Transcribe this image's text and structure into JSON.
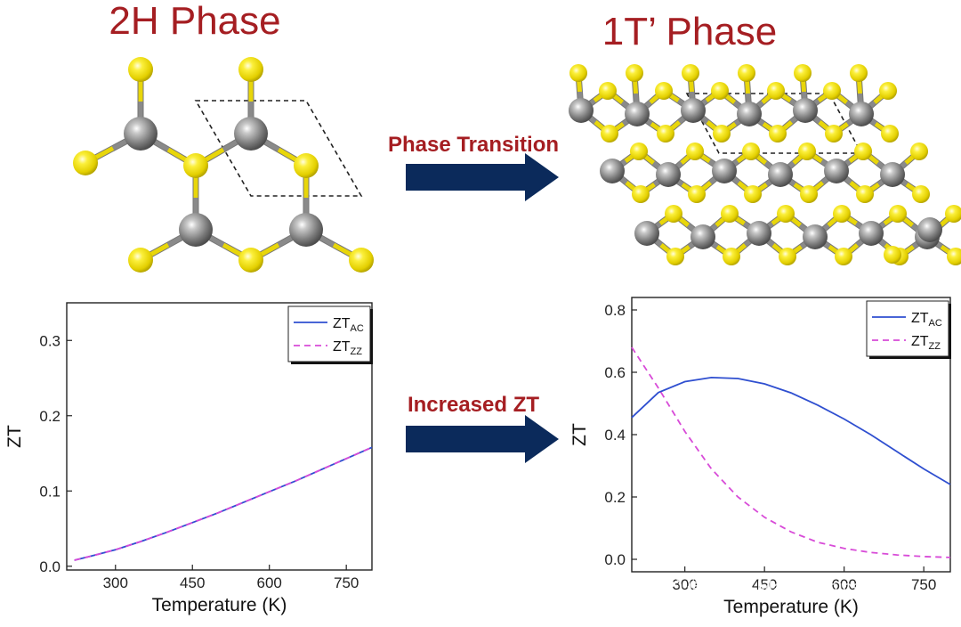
{
  "titles": {
    "left": "2H Phase",
    "right": "1T’ Phase"
  },
  "arrows": {
    "top": "Phase Transition",
    "bottom": "Increased ZT"
  },
  "watermark": "微信号: Materiomics",
  "colors": {
    "title_red": "#a51e22",
    "arrow_navy": "#0b2a5b",
    "metal_atom": "#808080",
    "chalcogen_atom": "#f2e21b",
    "series_ac": "#2f4fd0",
    "series_zz": "#d84bd8"
  },
  "chart_data": [
    {
      "type": "line",
      "xlabel": "Temperature (K)",
      "ylabel": "ZT",
      "xlim": [
        205,
        800
      ],
      "ylim": [
        -0.005,
        0.35
      ],
      "xticks": [
        300,
        450,
        600,
        750
      ],
      "yticks": [
        0.0,
        0.1,
        0.2,
        0.3
      ],
      "ytick_labels": [
        "0.0",
        "0.1",
        "0.2",
        "0.3"
      ],
      "legend": "top-right",
      "series": [
        {
          "name": "ZT",
          "sub": "AC",
          "style": "solid",
          "x": [
            220,
            250,
            300,
            350,
            400,
            450,
            500,
            550,
            600,
            650,
            700,
            750,
            800
          ],
          "y": [
            0.008,
            0.013,
            0.022,
            0.033,
            0.045,
            0.058,
            0.071,
            0.085,
            0.099,
            0.113,
            0.128,
            0.143,
            0.158
          ]
        },
        {
          "name": "ZT",
          "sub": "ZZ",
          "style": "dashed",
          "x": [
            220,
            250,
            300,
            350,
            400,
            450,
            500,
            550,
            600,
            650,
            700,
            750,
            800
          ],
          "y": [
            0.008,
            0.013,
            0.022,
            0.033,
            0.045,
            0.058,
            0.071,
            0.085,
            0.099,
            0.113,
            0.128,
            0.143,
            0.158
          ]
        }
      ]
    },
    {
      "type": "line",
      "xlabel": "Temperature (K)",
      "ylabel": "ZT",
      "xlim": [
        200,
        800
      ],
      "ylim": [
        -0.04,
        0.84
      ],
      "xticks": [
        300,
        450,
        600,
        750
      ],
      "yticks": [
        0.0,
        0.2,
        0.4,
        0.6,
        0.8
      ],
      "ytick_labels": [
        "0.0",
        "0.2",
        "0.4",
        "0.6",
        "0.8"
      ],
      "legend": "top-right",
      "series": [
        {
          "name": "ZT",
          "sub": "AC",
          "style": "solid",
          "x": [
            200,
            250,
            300,
            350,
            400,
            450,
            500,
            550,
            600,
            650,
            700,
            750,
            800
          ],
          "y": [
            0.455,
            0.535,
            0.57,
            0.583,
            0.58,
            0.563,
            0.534,
            0.495,
            0.45,
            0.4,
            0.345,
            0.29,
            0.24
          ]
        },
        {
          "name": "ZT",
          "sub": "ZZ",
          "style": "dashed",
          "x": [
            200,
            250,
            300,
            350,
            400,
            450,
            500,
            550,
            600,
            650,
            700,
            750,
            800
          ],
          "y": [
            0.68,
            0.55,
            0.41,
            0.29,
            0.2,
            0.135,
            0.088,
            0.055,
            0.035,
            0.022,
            0.014,
            0.009,
            0.006
          ]
        }
      ]
    }
  ]
}
